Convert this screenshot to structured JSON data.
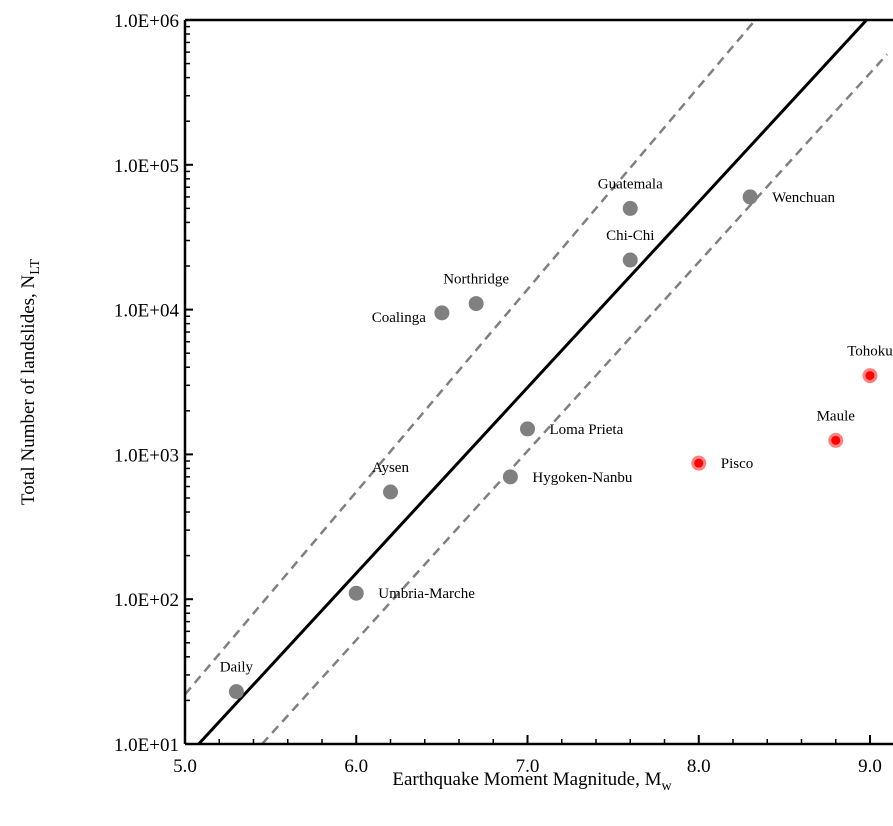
{
  "colors": {
    "grey_point": "#808080",
    "red_point": "#ff0000",
    "red_outline": "#ff8080",
    "mean_line": "#000000",
    "bound_line": "#808080",
    "axis": "#000000"
  },
  "chart_data": {
    "type": "scatter",
    "title": "",
    "xlabel": "Earthquake Moment Magnitude, M",
    "xlabel_sub": "w",
    "ylabel": "Total Number of landslides, N",
    "ylabel_sub": "LT",
    "xlim": [
      5.0,
      9.0
    ],
    "ylim": [
      10,
      1000000
    ],
    "y_scale": "log",
    "grid": false,
    "legend": "none",
    "x_ticks": [
      "5.0",
      "6.0",
      "7.0",
      "8.0",
      "9.0"
    ],
    "y_ticks": [
      "1.0E+01",
      "1.0E+02",
      "1.0E+03",
      "1.0E+04",
      "1.0E+05",
      "1.0E+06"
    ],
    "series": [
      {
        "color": "#808080",
        "points": [
          {
            "label": "Daily",
            "x": 5.3,
            "y": 23,
            "label_pos": "above"
          },
          {
            "label": "Umbria-Marche",
            "x": 6.0,
            "y": 110,
            "label_pos": "right"
          },
          {
            "label": "Aysen",
            "x": 6.2,
            "y": 550,
            "label_pos": "above"
          },
          {
            "label": "Coalinga",
            "x": 6.5,
            "y": 9500,
            "label_pos": "left"
          },
          {
            "label": "Northridge",
            "x": 6.7,
            "y": 11000,
            "label_pos": "above"
          },
          {
            "label": "Hygoken-Nanbu",
            "x": 6.9,
            "y": 700,
            "label_pos": "right"
          },
          {
            "label": "Loma Prieta",
            "x": 7.0,
            "y": 1500,
            "label_pos": "right"
          },
          {
            "label": "Chi-Chi",
            "x": 7.6,
            "y": 22000,
            "label_pos": "above"
          },
          {
            "label": "Guatemala",
            "x": 7.6,
            "y": 50000,
            "label_pos": "above"
          },
          {
            "label": "Wenchuan",
            "x": 8.3,
            "y": 60000,
            "label_pos": "right"
          }
        ]
      },
      {
        "color": "#ff0000",
        "points": [
          {
            "label": "Pisco",
            "x": 8.0,
            "y": 870,
            "label_pos": "right"
          },
          {
            "label": "Maule",
            "x": 8.8,
            "y": 1250,
            "label_pos": "above"
          },
          {
            "label": "Tohoku",
            "x": 9.0,
            "y": 3500,
            "label_pos": "above"
          }
        ]
      }
    ],
    "lines": [
      {
        "style": "solid",
        "color": "#000000",
        "from": {
          "x": 5.08,
          "y": 10
        },
        "to": {
          "x": 8.98,
          "y": 1000000
        }
      },
      {
        "style": "dashed",
        "color": "#808080",
        "from": {
          "x": 5.0,
          "y": 22
        },
        "to": {
          "x": 8.33,
          "y": 1000000
        }
      },
      {
        "style": "dashed",
        "color": "#808080",
        "from": {
          "x": 5.45,
          "y": 10
        },
        "to": {
          "x": 9.1,
          "y": 580000
        }
      }
    ]
  }
}
